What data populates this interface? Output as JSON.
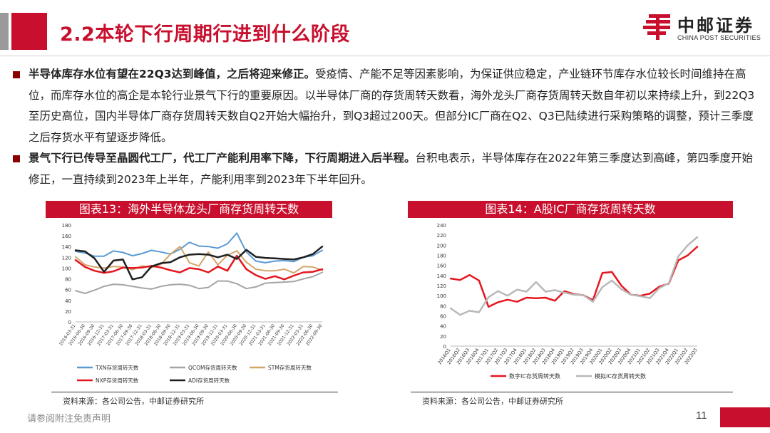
{
  "header": {
    "title": "2.2本轮下行周期行进到什么阶段",
    "logo_cn": "中邮证券",
    "logo_en": "CHINA POST SECURITIES"
  },
  "bullets": [
    {
      "bold": "半导体库存水位有望在22Q3达到峰值，之后将迎来修正。",
      "text": "受疫情、产能不足等因素影响，为保证供应稳定，产业链环节库存水位较长时间维持在高位，而库存水位的高企是本轮行业景气下行的重要原因。以半导体厂商的存货周转天数看，海外龙头厂商存货周转天数自年初以来持续上升，到22Q3至历史高位，国内半导体厂商存货周转天数自Q2开始大幅抬升，到Q3超过200天。但部分IC厂商在Q2、Q3已陆续进行采购策略的调整，预计三季度之后存货水平有望逐步降低。"
    },
    {
      "bold": "景气下行已传导至晶圆代工厂，代工厂产能利用率下降，下行周期进入后半程。",
      "text": "台积电表示，半导体库存在2022年第三季度达到高峰，第四季度开始修正，一直持续到2023年上半年，产能利用率到2023年下半年回升。"
    }
  ],
  "chart_data": [
    {
      "type": "line",
      "title": "图表13：海外半导体龙头厂商存货周转天数",
      "ylim": [
        0,
        180
      ],
      "yticks": [
        "0",
        "20",
        "40",
        "60",
        "80",
        "100",
        "120",
        "140",
        "160",
        "180"
      ],
      "categories": [
        "2016-03-31",
        "2016-06-30",
        "2016-09-30",
        "2016-12-31",
        "2017-03-31",
        "2017-06-30",
        "2017-09-30",
        "2017-12-31",
        "2018-03-31",
        "2018-06-30",
        "2018-09-30",
        "2018-12-31",
        "2019-03-31",
        "2019-06-30",
        "2019-09-30",
        "2019-12-31",
        "2020-03-31",
        "2020-06-30",
        "2020-09-30",
        "2020-12-31",
        "2021-03-31",
        "2021-06-30",
        "2021-09-30",
        "2021-12-31",
        "2022-03-31",
        "2022-06-30",
        "2022-09-30"
      ],
      "series": [
        {
          "name": "TXN存货周转天数",
          "color": "#5b9bd5",
          "values": [
            131,
            128,
            122,
            122,
            132,
            129,
            123,
            127,
            133,
            130,
            126,
            135,
            148,
            141,
            140,
            137,
            145,
            165,
            130,
            113,
            110,
            113,
            114,
            112,
            120,
            123,
            133
          ]
        },
        {
          "name": "QCOM存货周转天数",
          "color": "#a5a5a5",
          "values": [
            58,
            53,
            59,
            66,
            70,
            69,
            66,
            63,
            61,
            66,
            69,
            70,
            68,
            62,
            64,
            76,
            76,
            71,
            62,
            65,
            72,
            73,
            74,
            75,
            80,
            84,
            92
          ]
        },
        {
          "name": "STM存货周转天数",
          "color": "#d4a56a",
          "values": [
            121,
            106,
            102,
            100,
            103,
            102,
            97,
            104,
            101,
            107,
            126,
            140,
            110,
            104,
            130,
            106,
            124,
            132,
            111,
            98,
            95,
            95,
            98,
            91,
            103,
            102,
            96
          ]
        },
        {
          "name": "NXP存货周转天数",
          "color": "#e5161f",
          "values": [
            115,
            102,
            95,
            91,
            94,
            101,
            100,
            101,
            104,
            101,
            96,
            92,
            100,
            98,
            92,
            103,
            95,
            123,
            98,
            87,
            80,
            85,
            79,
            86,
            92,
            93,
            98
          ]
        },
        {
          "name": "ADI存货周转天数",
          "color": "#1f1f1f",
          "values": [
            133,
            131,
            118,
            93,
            114,
            116,
            79,
            83,
            103,
            109,
            111,
            120,
            125,
            126,
            125,
            120,
            125,
            117,
            134,
            121,
            119,
            118,
            117,
            116,
            120,
            126,
            140
          ]
        }
      ]
    },
    {
      "type": "line",
      "title": "图表14：A股IC厂商存货周转天数",
      "ylim": [
        0,
        240
      ],
      "yticks": [
        "0",
        "20",
        "40",
        "60",
        "80",
        "100",
        "120",
        "140",
        "160",
        "180",
        "200",
        "220",
        "240"
      ],
      "categories": [
        "2016Q1",
        "2016Q2",
        "2016Q3",
        "2016Q4",
        "2017Q1",
        "2017Q2",
        "2017Q3",
        "2017Q4",
        "2018Q1",
        "2018Q2",
        "2018Q3",
        "2018Q4",
        "2019Q1",
        "2019Q2",
        "2019Q3",
        "2019Q4",
        "2020Q1",
        "2020Q2",
        "2020Q3",
        "2020Q4",
        "2021Q1",
        "2021Q2",
        "2021Q3",
        "2021Q4",
        "2022Q1",
        "2022Q2",
        "2022Q3"
      ],
      "series": [
        {
          "name": "数字IC存货周转天数",
          "color": "#e5161f",
          "values": [
            134,
            131,
            141,
            130,
            78,
            87,
            92,
            88,
            96,
            95,
            96,
            90,
            109,
            103,
            101,
            91,
            145,
            147,
            120,
            102,
            100,
            104,
            118,
            124,
            170,
            180,
            197
          ]
        },
        {
          "name": "模拟IC存货周转天数",
          "color": "#b8b8b8",
          "values": [
            75,
            62,
            70,
            67,
            97,
            109,
            100,
            112,
            108,
            127,
            108,
            111,
            106,
            102,
            101,
            88,
            117,
            130,
            113,
            102,
            99,
            95,
            115,
            125,
            178,
            200,
            216
          ]
        }
      ]
    }
  ],
  "sources": [
    "资料来源：各公司公告，中邮证券研究所",
    "资料来源：各公司公告，中邮证券研究所"
  ],
  "footer": {
    "disclaimer": "请参阅附注免责声明",
    "page": "11"
  }
}
